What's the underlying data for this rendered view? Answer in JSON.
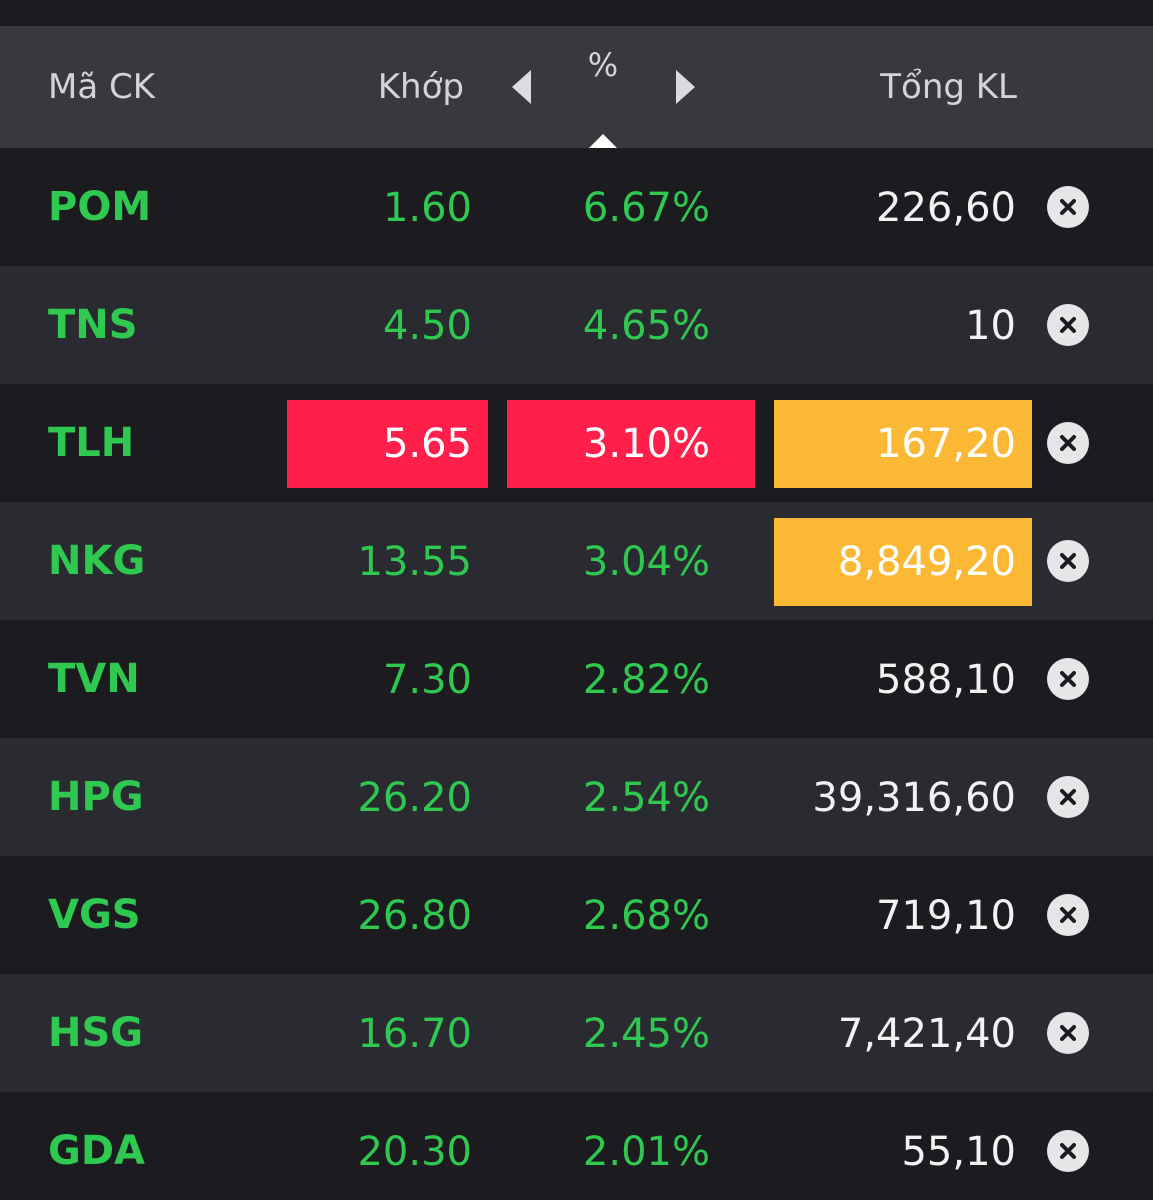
{
  "header": {
    "symbol_label": "Mã CK",
    "price_label": "Khớp",
    "percent_label": "%",
    "volume_label": "Tổng KL"
  },
  "colors": {
    "up_green": "#2fc850",
    "highlight_red": "#ff1f4b",
    "highlight_yellow": "#fbb834",
    "header_bg": "#38383e"
  },
  "rows": [
    {
      "symbol": "POM",
      "price": "1.60",
      "change_pct": "6.67%",
      "volume": "226,60",
      "price_highlight": "",
      "pct_highlight": "",
      "volume_highlight": ""
    },
    {
      "symbol": "TNS",
      "price": "4.50",
      "change_pct": "4.65%",
      "volume": "10",
      "price_highlight": "",
      "pct_highlight": "",
      "volume_highlight": ""
    },
    {
      "symbol": "TLH",
      "price": "5.65",
      "change_pct": "3.10%",
      "volume": "167,20",
      "price_highlight": "red",
      "pct_highlight": "red",
      "volume_highlight": "yellow"
    },
    {
      "symbol": "NKG",
      "price": "13.55",
      "change_pct": "3.04%",
      "volume": "8,849,20",
      "price_highlight": "",
      "pct_highlight": "",
      "volume_highlight": "yellow"
    },
    {
      "symbol": "TVN",
      "price": "7.30",
      "change_pct": "2.82%",
      "volume": "588,10",
      "price_highlight": "",
      "pct_highlight": "",
      "volume_highlight": ""
    },
    {
      "symbol": "HPG",
      "price": "26.20",
      "change_pct": "2.54%",
      "volume": "39,316,60",
      "price_highlight": "",
      "pct_highlight": "",
      "volume_highlight": ""
    },
    {
      "symbol": "VGS",
      "price": "26.80",
      "change_pct": "2.68%",
      "volume": "719,10",
      "price_highlight": "",
      "pct_highlight": "",
      "volume_highlight": ""
    },
    {
      "symbol": "HSG",
      "price": "16.70",
      "change_pct": "2.45%",
      "volume": "7,421,40",
      "price_highlight": "",
      "pct_highlight": "",
      "volume_highlight": ""
    },
    {
      "symbol": "GDA",
      "price": "20.30",
      "change_pct": "2.01%",
      "volume": "55,10",
      "price_highlight": "",
      "pct_highlight": "",
      "volume_highlight": ""
    }
  ],
  "icons": {
    "prev_column": "caret-left-icon",
    "next_column": "caret-right-icon",
    "sort": "sort-ascending-icon",
    "remove": "remove-circle-x-icon"
  }
}
